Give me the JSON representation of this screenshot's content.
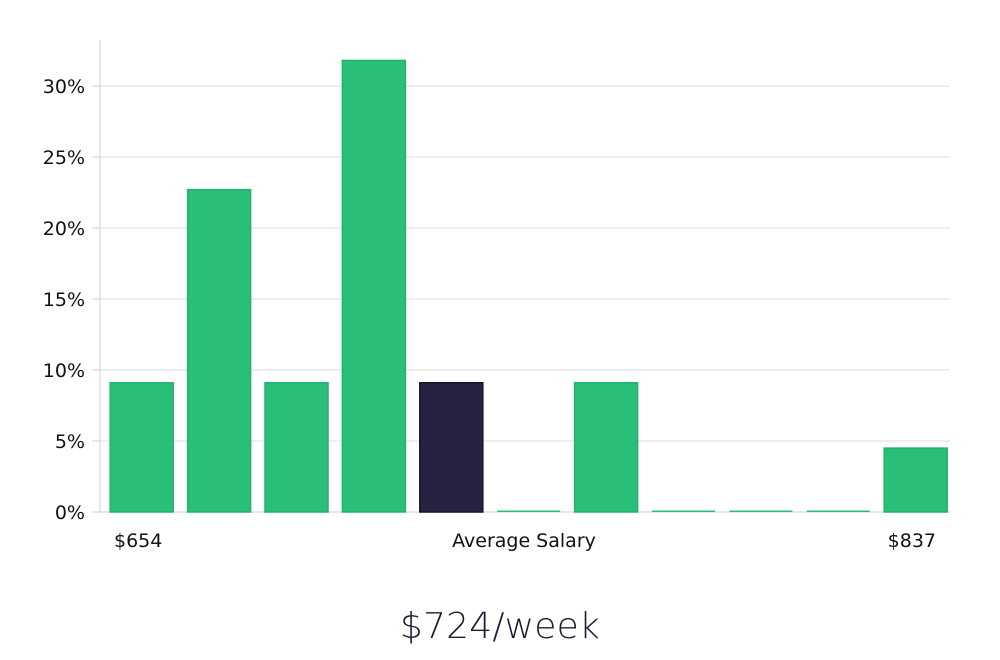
{
  "chart_data": {
    "type": "bar",
    "values": [
      9.1,
      22.7,
      9.1,
      31.8,
      9.1,
      0,
      9.1,
      0,
      0,
      0,
      4.5
    ],
    "highlight_index": 4,
    "y_unit": "%",
    "ylim": [
      0,
      33
    ],
    "yticks": [
      "0%",
      "5%",
      "10%",
      "15%",
      "20%",
      "25%",
      "30%"
    ],
    "ytick_values": [
      0,
      5,
      10,
      15,
      20,
      25,
      30
    ],
    "x_labels": {
      "left": "$654",
      "center": "Average Salary",
      "right": "$837"
    },
    "grid": true
  },
  "headline": "$724/week",
  "colors": {
    "bar": "#2abf78",
    "bar_edge": "#22b36d",
    "highlight": "#262241",
    "grid": "#dcdcdc",
    "axis": "#cfcfcf",
    "text": "#111111"
  }
}
